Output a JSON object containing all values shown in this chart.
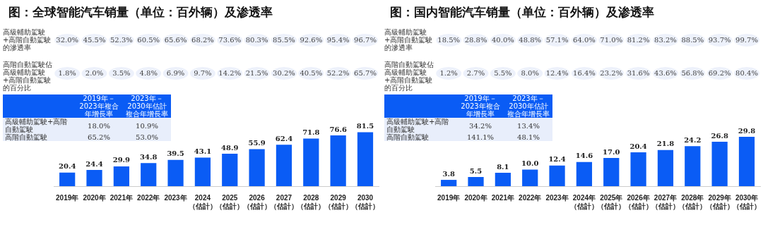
{
  "chart_data": [
    {
      "type": "bar",
      "title": "图：全球智能汽车销量（单位：百外辆）及渗透率",
      "categories": [
        "2019年",
        "2020年",
        "2021年",
        "2022年",
        "2023年",
        "2024（估計）",
        "2025（估計）",
        "2026（估計）",
        "2027（估計）",
        "2028（估計）",
        "2029（估計）",
        "2030（估計）"
      ],
      "series": [
        {
          "color": "#0a5cf5",
          "values": [
            20.4,
            24.4,
            29.9,
            34.8,
            39.5,
            43.1,
            48.9,
            55.9,
            62.4,
            71.8,
            76.6,
            81.5
          ],
          "value_labels": [
            "20.4",
            "24.4",
            "29.9",
            "34.8",
            "39.5",
            "43.1",
            "48.9",
            "55.9",
            "62.4",
            "71.8",
            "76.6",
            "81.5"
          ]
        }
      ],
      "legend": false,
      "annotations": [
        "高級輔助駕駛+高階自動駕駛的滲透率",
        "32.0%",
        "45.5%",
        "52.3%",
        "60.5%",
        "65.6%",
        "68.2%",
        "73.6%",
        "80.3%",
        "85.5%",
        "92.6%",
        "95.4%",
        "96.7%",
        "高階自動駕駛佔高級輔助駕駛+高階自動駕駛的百分比",
        "1.8%",
        "2.0%",
        "3.5%",
        "4.8%",
        "6.9%",
        "9.7%",
        "14.2%",
        "21.5%",
        "30.2%",
        "40.5%",
        "52.2%",
        "65.7%",
        "2019年－2023年複合年增長率",
        "2023年－2030年估計複合年增長率",
        "高級輔助駕駛+高階自動駕駛",
        "18.0%",
        "10.9%",
        "高階自動駕駛",
        "65.2%",
        "53.0%"
      ]
    },
    {
      "type": "bar",
      "title": "图：国内智能汽车销量（单位：百外辆）及渗透率",
      "categories": [
        "2019年",
        "2020年",
        "2021年",
        "2022年",
        "2023年",
        "2024年（估計）",
        "2025年（估計）",
        "2026年（估計）",
        "2027年（估計）",
        "2028年（估計）",
        "2029年（估計）",
        "2030年（估計）"
      ],
      "series": [
        {
          "color": "#0a5cf5",
          "values": [
            3.8,
            5.5,
            8.1,
            10.0,
            12.4,
            14.6,
            17.0,
            20.4,
            21.8,
            24.2,
            26.8,
            29.8
          ],
          "value_labels": [
            "3.8",
            "5.5",
            "8.1",
            "10.0",
            "12.4",
            "14.6",
            "17.0",
            "20.4",
            "21.8",
            "24.2",
            "26.8",
            "29.8"
          ]
        }
      ],
      "legend": false,
      "annotations": [
        "高級輔助駕駛+高階自動駕駛的滲透率",
        "18.5%",
        "28.8%",
        "40.0%",
        "48.8%",
        "57.1%",
        "64.0%",
        "71.0%",
        "81.2%",
        "83.2%",
        "88.5%",
        "93.7%",
        "99.7%",
        "高階自動駕駛佔高級輔助駕駛+高階自動駕駛的百分比",
        "1.2%",
        "2.7%",
        "5.5%",
        "8.0%",
        "12.4%",
        "16.4%",
        "23.2%",
        "31.6%",
        "43.6%",
        "56.8%",
        "69.2%",
        "80.4%",
        "2019年－2023年複合年增長率",
        "2023年－2030年估計複合年增長率",
        "高級輔助駕駛+高階自動駕駛",
        "34.2%",
        "13.4%",
        "高階自動駕駛",
        "141.1%",
        "48.1%"
      ]
    }
  ]
}
